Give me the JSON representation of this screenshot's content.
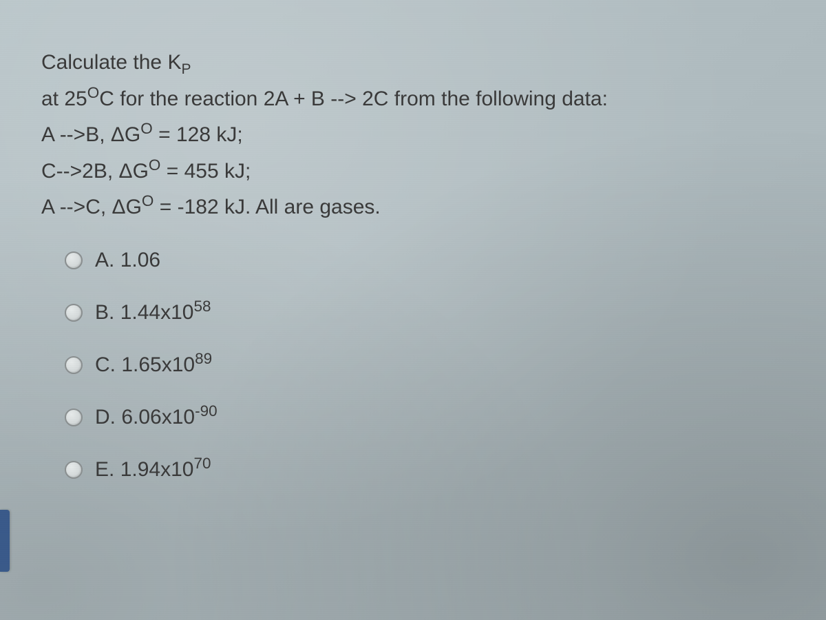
{
  "question": {
    "line1_pre": "Calculate the K",
    "line1_sub": "P",
    "line2_pre": "at 25",
    "line2_deg_sup": "O",
    "line2_post": "C for the reaction  2A  + B --> 2C from the following data:",
    "r1_pre": "A -->B, ",
    "r1_dg": "ΔG",
    "r1_sup": "O",
    "r1_post": " = 128 kJ;",
    "r2_pre": "C-->2B, ",
    "r2_dg": "ΔG",
    "r2_sup": "O",
    "r2_post": " = 455 kJ;",
    "r3_pre": "A  -->C, ",
    "r3_dg": "ΔG",
    "r3_sup": "O",
    "r3_post": " = -182 kJ.   All are gases."
  },
  "choices": {
    "a": {
      "letter": "A.",
      "text": "1.06"
    },
    "b": {
      "letter": "B.",
      "base": "1.44x10",
      "exp": "58"
    },
    "c": {
      "letter": "C.",
      "base": "1.65x10",
      "exp": "89"
    },
    "d": {
      "letter": "D.",
      "base": "6.06x10",
      "exp": "-90"
    },
    "e": {
      "letter": "E.",
      "base": "1.94x10",
      "exp": "70"
    }
  },
  "colors": {
    "text": "#3a3a3a",
    "radio_border": "#8a8f90",
    "bg_top": "#b8c4c8",
    "bg_bottom": "#a8b4b8",
    "edge_tab": "#3a5a8a"
  },
  "fontsize": {
    "stem": 30,
    "choice": 30
  }
}
